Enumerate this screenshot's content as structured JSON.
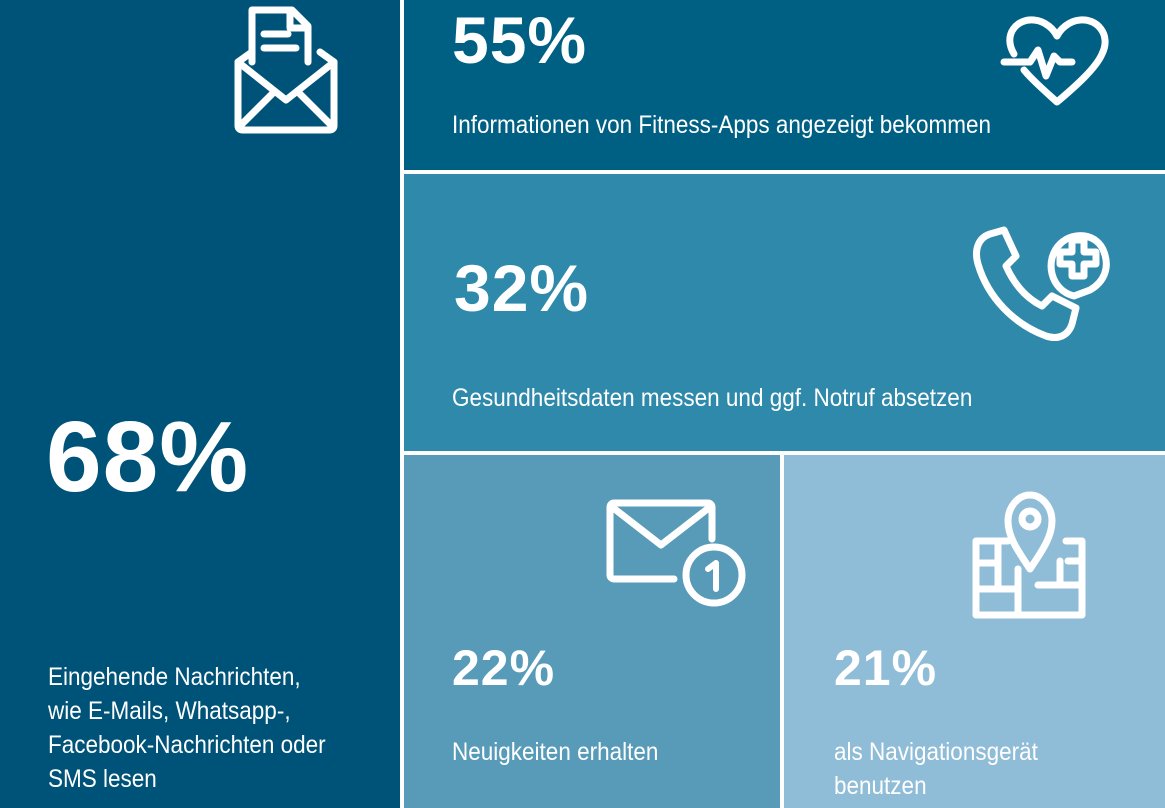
{
  "tiles": [
    {
      "percent": "68%",
      "label_lines": [
        "Eingehende Nachrichten,",
        "wie E-Mails, Whatsapp-,",
        "Facebook-Nachrichten oder",
        "SMS lesen"
      ],
      "icon": "envelope-document-icon",
      "color": "#005378"
    },
    {
      "percent": "55%",
      "label": "Informationen von Fitness-Apps angezeigt bekommen",
      "icon": "heart-pulse-icon",
      "color": "#006084"
    },
    {
      "percent": "32%",
      "label": "Gesundheitsdaten messen und ggf. Notruf absetzen",
      "icon": "phone-medical-icon",
      "color": "#2e89aa"
    },
    {
      "percent": "22%",
      "label": "Neuigkeiten erhalten",
      "icon": "envelope-notification-icon",
      "color": "#579bb8"
    },
    {
      "percent": "21%",
      "label_lines": [
        "als Navigationsgerät",
        "benutzen"
      ],
      "icon": "map-pin-icon",
      "color": "#8fbcd6"
    }
  ]
}
